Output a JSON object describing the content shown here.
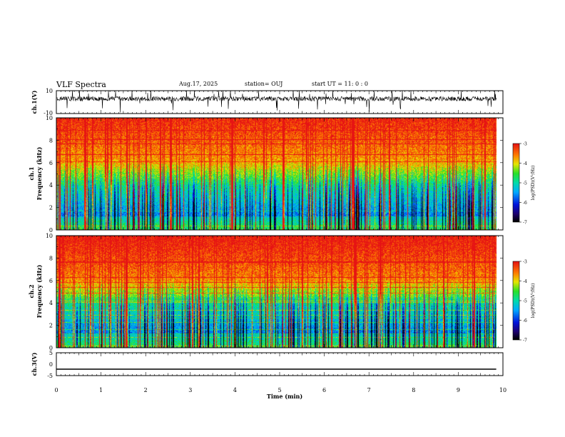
{
  "header": {
    "title": "VLF Spectra",
    "date": "Aug.17, 2025",
    "station": "station= OUJ",
    "start": "start  UT =   11: 0  : 0"
  },
  "chart_data": [
    {
      "type": "line",
      "panel": "ch1-waveform",
      "ylabel": "ch.1(V)",
      "ylim": [
        -10,
        10
      ],
      "yticks": [
        "10",
        "-10"
      ],
      "xlim": [
        0,
        10
      ],
      "baseline": 3
    },
    {
      "type": "heatmap",
      "panel": "ch1-spectrogram",
      "ylabel_line1": "ch.1",
      "ylabel_line2": "Frequency (kHz)",
      "ylim": [
        0,
        10
      ],
      "yticks": [
        "0",
        "2",
        "4",
        "6",
        "8",
        "10"
      ],
      "xlim": [
        0,
        10
      ],
      "data_end_min": 9.85,
      "colorbar": {
        "label": "log(PSD)(V²/Hz)",
        "range": [
          -7,
          -3
        ],
        "ticks": [
          "-3",
          "-4",
          "-5",
          "-6",
          "-7"
        ]
      }
    },
    {
      "type": "heatmap",
      "panel": "ch2-spectrogram",
      "ylabel_line1": "ch.2",
      "ylabel_line2": "Frequency (kHz)",
      "ylim": [
        0,
        10
      ],
      "yticks": [
        "0",
        "2",
        "4",
        "6",
        "8",
        "10"
      ],
      "xlim": [
        0,
        10
      ],
      "data_end_min": 9.85,
      "colorbar": {
        "label": "log(PSD)(V²/Hz)",
        "range": [
          -7,
          -3
        ],
        "ticks": [
          "-3",
          "-4",
          "-5",
          "-6",
          "-7"
        ]
      }
    },
    {
      "type": "line",
      "panel": "ch3-waveform",
      "ylabel": "ch.3(V)",
      "ylim": [
        -5,
        5
      ],
      "yticks": [
        "5",
        "0",
        "-5"
      ],
      "xlim": [
        0,
        10
      ],
      "x": [
        0,
        9.85
      ],
      "y": [
        -2.2,
        -2.2
      ]
    }
  ],
  "xaxis": {
    "label": "Time (min)",
    "ticks": [
      "0",
      "1",
      "2",
      "3",
      "4",
      "5",
      "6",
      "7",
      "8",
      "9",
      "10"
    ]
  }
}
